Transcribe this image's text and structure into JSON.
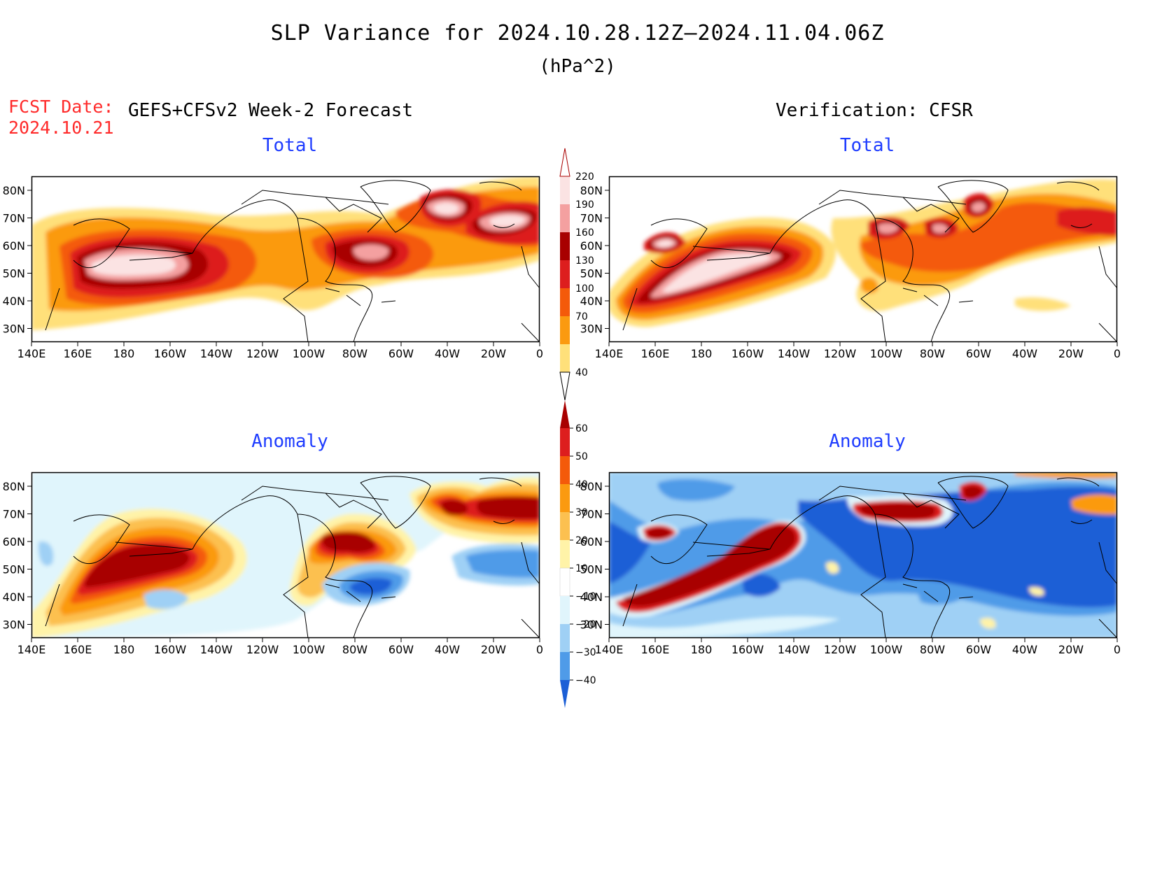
{
  "title": "SLP Variance for 2024.10.28.12Z—2024.11.04.06Z",
  "units": "(hPa^2)",
  "forecast": {
    "label": "FCST Date:",
    "date": "2024.10.21",
    "model": "GEFS+CFSv2 Week-2 Forecast"
  },
  "verification": "Verification: CFSR",
  "panels": {
    "fcst_total": "Total",
    "verif_total": "Total",
    "fcst_anomaly": "Anomaly",
    "verif_anomaly": "Anomaly"
  },
  "lat_labels": [
    "80N",
    "70N",
    "60N",
    "50N",
    "40N",
    "30N"
  ],
  "lon_labels": [
    "140E",
    "160E",
    "180",
    "160W",
    "140W",
    "120W",
    "100W",
    "80W",
    "60W",
    "40W",
    "20W",
    "0"
  ],
  "colorbar_total": {
    "levels": [
      "220",
      "190",
      "160",
      "130",
      "100",
      "70",
      "40"
    ],
    "colors": [
      "#fbe3e3",
      "#f4a0a0",
      "#a80000",
      "#dd1e1e",
      "#f45a0a",
      "#fb9a10",
      "#ffe07a"
    ]
  },
  "colorbar_anomaly": {
    "levels": [
      "60",
      "50",
      "40",
      "30",
      "20",
      "10",
      "−10",
      "−20",
      "−30",
      "−40"
    ],
    "colors": [
      "#a80000",
      "#dd1e1e",
      "#f45a0a",
      "#fb9a10",
      "#fcc050",
      "#fff3a8",
      "#ffffff",
      "#e0f5fc",
      "#9fd0f5",
      "#4f9be8",
      "#1c5fd6"
    ]
  }
}
